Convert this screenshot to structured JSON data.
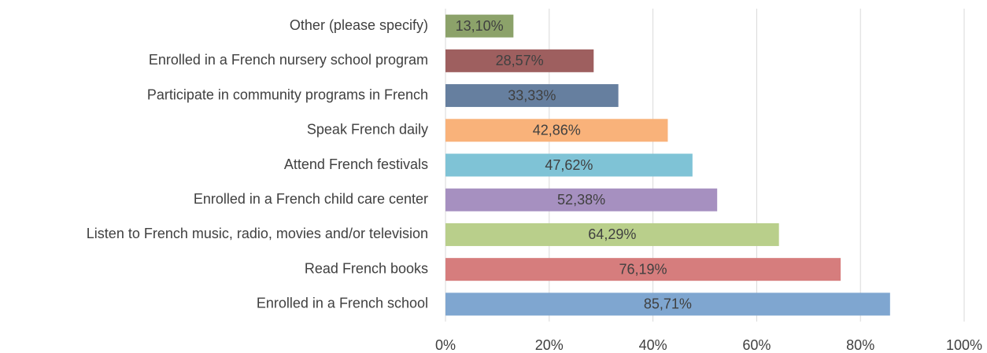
{
  "chart_data": {
    "type": "bar",
    "orientation": "horizontal",
    "categories": [
      "Other (please specify)",
      "Enrolled in a French nursery school program",
      "Participate in community programs in French",
      "Speak French daily",
      "Attend French festivals",
      "Enrolled in a French child care center",
      "Listen to French music, radio, movies and/or television",
      "Read French books",
      "Enrolled in a French school"
    ],
    "values": [
      13.1,
      28.57,
      33.33,
      42.86,
      47.62,
      52.38,
      64.29,
      76.19,
      85.71
    ],
    "value_labels": [
      "13,10%",
      "28,57%",
      "33,33%",
      "42,86%",
      "47,62%",
      "52,38%",
      "64,29%",
      "76,19%",
      "85,71%"
    ],
    "colors": [
      "#8ca26a",
      "#9e5f5f",
      "#667f9f",
      "#f9b27a",
      "#7fc3d6",
      "#a690c0",
      "#b9cf8b",
      "#d67d7d",
      "#7fa6d0"
    ],
    "xlim": [
      0,
      100
    ],
    "xticks": [
      {
        "value": 0,
        "label": "0%"
      },
      {
        "value": 20,
        "label": "20%"
      },
      {
        "value": 40,
        "label": "40%"
      },
      {
        "value": 60,
        "label": "60%"
      },
      {
        "value": 80,
        "label": "80%"
      },
      {
        "value": 100,
        "label": "100%"
      }
    ],
    "grid": true
  }
}
